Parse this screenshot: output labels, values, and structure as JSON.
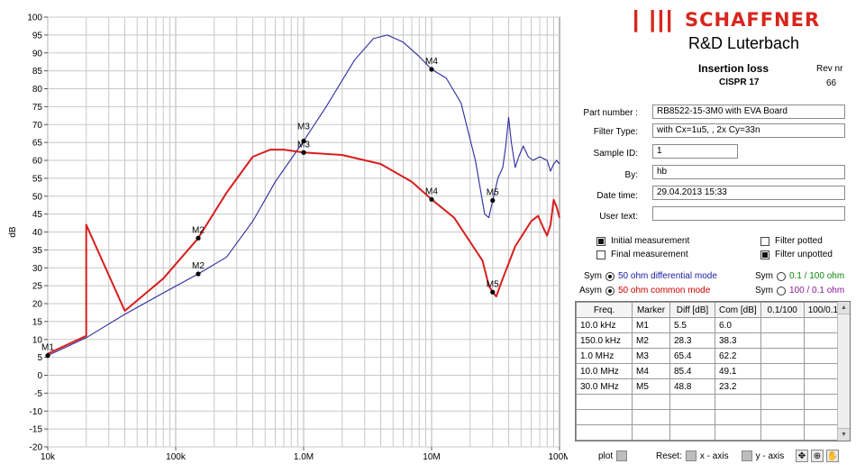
{
  "chart_data": {
    "type": "line",
    "x_scale": "log",
    "xlim": [
      10000,
      100000000
    ],
    "ylim": [
      -20,
      100
    ],
    "ylabel": "dB",
    "grid": true,
    "x_tick_labels": [
      {
        "v": 10000,
        "label": "10k"
      },
      {
        "v": 100000,
        "label": "100k"
      },
      {
        "v": 1000000,
        "label": "1.0M"
      },
      {
        "v": 10000000,
        "label": "10M"
      },
      {
        "v": 100000000,
        "label": "100M"
      }
    ],
    "y_ticks": [
      -20,
      -15,
      -10,
      -5,
      0,
      5,
      10,
      15,
      20,
      25,
      30,
      35,
      40,
      45,
      50,
      55,
      60,
      65,
      70,
      75,
      80,
      85,
      90,
      95,
      100
    ],
    "series": [
      {
        "key": "diff",
        "color": "#2b2b9e",
        "points": [
          [
            10000,
            5.5
          ],
          [
            20000,
            10.5
          ],
          [
            40000,
            17
          ],
          [
            80000,
            23
          ],
          [
            150000,
            28.3
          ],
          [
            250000,
            33
          ],
          [
            400000,
            43
          ],
          [
            600000,
            54
          ],
          [
            1000000,
            65.4
          ],
          [
            1500000,
            75
          ],
          [
            2500000,
            88
          ],
          [
            3500000,
            94
          ],
          [
            4500000,
            95
          ],
          [
            6000000,
            93
          ],
          [
            8000000,
            89
          ],
          [
            10000000,
            85.4
          ],
          [
            13000000,
            83
          ],
          [
            17000000,
            76
          ],
          [
            22000000,
            60
          ],
          [
            26000000,
            45
          ],
          [
            28000000,
            44
          ],
          [
            30000000,
            48.8
          ],
          [
            33000000,
            55
          ],
          [
            36000000,
            58
          ],
          [
            38000000,
            64
          ],
          [
            40000000,
            72
          ],
          [
            42000000,
            65
          ],
          [
            45000000,
            58
          ],
          [
            48000000,
            61
          ],
          [
            52000000,
            64
          ],
          [
            57000000,
            61
          ],
          [
            62000000,
            60
          ],
          [
            70000000,
            61
          ],
          [
            80000000,
            60
          ],
          [
            85000000,
            57
          ],
          [
            90000000,
            59
          ],
          [
            95000000,
            60
          ],
          [
            100000000,
            59
          ]
        ]
      },
      {
        "key": "com",
        "color": "#d81e1e",
        "points": [
          [
            10000,
            6
          ],
          [
            20000,
            11
          ],
          [
            40000,
            18
          ],
          [
            80000,
            27
          ],
          [
            150000,
            38.3
          ],
          [
            250000,
            51
          ],
          [
            400000,
            61
          ],
          [
            550000,
            63
          ],
          [
            700000,
            63
          ],
          [
            1000000,
            62.2
          ],
          [
            2000000,
            61.5
          ],
          [
            4000000,
            59
          ],
          [
            7000000,
            54
          ],
          [
            10000000,
            49.1
          ],
          [
            15000000,
            44
          ],
          [
            20000,
            42
          ],
          [
            25000000,
            32
          ],
          [
            28000000,
            25
          ],
          [
            30000000,
            23.2
          ],
          [
            32000000,
            22
          ],
          [
            36000000,
            27
          ],
          [
            45000000,
            36
          ],
          [
            60000000,
            43
          ],
          [
            68000000,
            44.5
          ],
          [
            75000000,
            41
          ],
          [
            80000000,
            39
          ],
          [
            85000000,
            42
          ],
          [
            90000000,
            49
          ],
          [
            95000000,
            47
          ],
          [
            100000000,
            44
          ]
        ]
      }
    ],
    "markers": [
      {
        "label": "M1",
        "x": 10000,
        "y": 5.5,
        "label_pos": "above"
      },
      {
        "label": "M2",
        "x": 150000,
        "y": 38.3,
        "label_pos": "above"
      },
      {
        "label": "M2",
        "x": 150000,
        "y": 28.3,
        "label_pos": "above"
      },
      {
        "label": "M3",
        "x": 1000000,
        "y": 65.4,
        "label_pos": "above2"
      },
      {
        "label": "M3",
        "x": 1000000,
        "y": 62.2,
        "label_pos": "above"
      },
      {
        "label": "M4",
        "x": 10000000,
        "y": 85.4,
        "label_pos": "above"
      },
      {
        "label": "M4",
        "x": 10000000,
        "y": 49.1,
        "label_pos": "above"
      },
      {
        "label": "M5",
        "x": 30000000,
        "y": 48.8,
        "label_pos": "above"
      },
      {
        "label": "M5",
        "x": 30000000,
        "y": 23.2,
        "label_pos": "above"
      }
    ]
  },
  "header": {
    "logo_bars": "| |||",
    "logo_text": "SCHAFFNER",
    "subtitle": "R&D Luterbach",
    "title": "Insertion loss",
    "standard": "CISPR 17",
    "rev_label": "Rev nr",
    "rev_value": "66"
  },
  "form": {
    "part_number_label": "Part number :",
    "part_number": "RB8522-15-3M0 with EVA Board",
    "filter_type_label": "Filter Type:",
    "filter_type": "with Cx=1u5,  , 2x Cy=33n",
    "sample_id_label": "Sample ID:",
    "sample_id": "1",
    "by_label": "By:",
    "by": "hb",
    "date_time_label": "Date time:",
    "date_time": "29.04.2013 15:33",
    "user_text_label": "User text:",
    "user_text": ""
  },
  "checkboxes": {
    "initial": "Initial measurement",
    "final": "Final measurement",
    "potted": "Filter potted",
    "unpotted": "Filter unpotted"
  },
  "modes": {
    "sym_label": "Sym",
    "asym_label": "Asym",
    "diff_mode": "50 ohm differential mode",
    "com_mode": "50 ohm common mode",
    "sym2_label": "Sym",
    "sym3_label": "Sym",
    "mode_a": "0.1 / 100 ohm",
    "mode_b": "100 / 0.1 ohm",
    "diff_color": "#1a1aa0",
    "com_color": "#cc0000",
    "mode_a_color": "#0a8a0a",
    "mode_b_color": "#8a1a9a"
  },
  "table": {
    "headers": [
      "Freq.",
      "Marker",
      "Diff [dB]",
      "Com [dB]",
      "0.1/100",
      "100/0.1"
    ],
    "rows": [
      [
        "10.0 kHz",
        "M1",
        "5.5",
        "6.0",
        "",
        ""
      ],
      [
        "150.0 kHz",
        "M2",
        "28.3",
        "38.3",
        "",
        ""
      ],
      [
        "1.0 MHz",
        "M3",
        "65.4",
        "62.2",
        "",
        ""
      ],
      [
        "10.0 MHz",
        "M4",
        "85.4",
        "49.1",
        "",
        ""
      ],
      [
        "30.0 MHz",
        "M5",
        "48.8",
        "23.2",
        "",
        ""
      ],
      [
        "",
        "",
        "",
        "",
        "",
        ""
      ],
      [
        "",
        "",
        "",
        "",
        "",
        ""
      ],
      [
        "",
        "",
        "",
        "",
        "",
        ""
      ]
    ]
  },
  "bottom": {
    "plot": "plot",
    "reset": "Reset:",
    "x_axis": "x - axis",
    "y_axis": "y - axis",
    "tool_icons": [
      "move-icon",
      "zoom-icon",
      "hand-icon"
    ]
  }
}
